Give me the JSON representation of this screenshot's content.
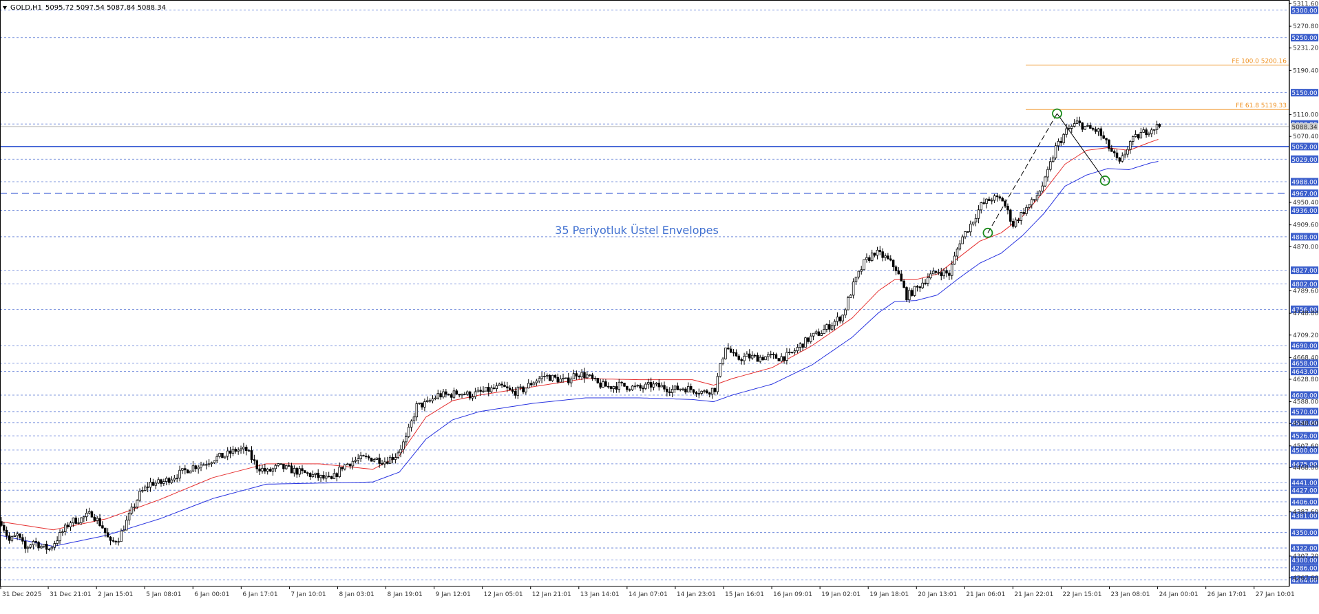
{
  "header": {
    "symbol": "GOLD,H1",
    "ohlc": "5095.72 5097.54 5087.84 5088.34"
  },
  "annotation": "35 Periyotluk Üstel Envelopes",
  "colors": {
    "background": "#ffffff",
    "level_line": "#3a5fcd",
    "level_label_bg": "#3c5fcc",
    "major_level": "#2a4fd0",
    "upper_envelope": "#e53030",
    "lower_envelope": "#2a35e0",
    "candle": "#000000",
    "fibo": "#ef8f1c",
    "circle": "#1a8a1a",
    "current_price_line": "#a0a0a0"
  },
  "fibo_levels": [
    {
      "label": "FE 100.0 5200.16",
      "price": 5200.16
    },
    {
      "label": "FE 61.8 5119.33",
      "price": 5119.33
    }
  ],
  "current_price": "5088.34",
  "chart_data": {
    "type": "candlestick",
    "title": "",
    "instrument": "GOLD",
    "timeframe": "H1",
    "ylim": [
      4252,
      5316
    ],
    "y_ticks": [
      "5311.60",
      "5270.80",
      "5231.20",
      "5190.40",
      "5110.00",
      "5070.40",
      "4950.40",
      "4909.60",
      "4870.00",
      "4789.60",
      "4748.80",
      "4709.20",
      "4668.40",
      "4628.80",
      "4588.00",
      "4548.40",
      "4507.60",
      "4468.00",
      "4387.60",
      "4307.20",
      "4267.60"
    ],
    "x_labels": [
      "31 Dec 2025",
      "31 Dec 21:01",
      "2 Jan 15:01",
      "5 Jan 08:01",
      "6 Jan 00:01",
      "6 Jan 17:01",
      "7 Jan 10:01",
      "8 Jan 03:01",
      "8 Jan 19:01",
      "9 Jan 12:01",
      "12 Jan 05:01",
      "12 Jan 21:01",
      "13 Jan 14:01",
      "14 Jan 07:01",
      "14 Jan 23:01",
      "15 Jan 16:01",
      "16 Jan 09:01",
      "19 Jan 02:01",
      "19 Jan 18:01",
      "20 Jan 13:01",
      "21 Jan 06:01",
      "21 Jan 22:01",
      "22 Jan 15:01",
      "23 Jan 08:01",
      "24 Jan 00:01",
      "26 Jan 17:01",
      "27 Jan 10:01"
    ],
    "levels": [
      "5300.00",
      "5250.00",
      "5150.00",
      "5093.00",
      "5052.00",
      "5029.00",
      "4988.00",
      "4967.00",
      "4936.00",
      "4888.00",
      "4827.00",
      "4802.00",
      "4756.00",
      "4690.00",
      "4658.00",
      "4643.00",
      "4600.00",
      "4570.00",
      "4550.00",
      "4526.00",
      "4500.00",
      "4475.00",
      "4441.00",
      "4427.00",
      "4406.00",
      "4381.00",
      "4350.00",
      "4322.00",
      "4300.00",
      "4286.00",
      "4264.00"
    ],
    "major_levels": [
      "5052.00",
      "4967.00"
    ],
    "price_path": [
      [
        0,
        4370
      ],
      [
        3,
        4335
      ],
      [
        6,
        4345
      ],
      [
        9,
        4320
      ],
      [
        12,
        4335
      ],
      [
        15,
        4325
      ],
      [
        18,
        4320
      ],
      [
        22,
        4345
      ],
      [
        26,
        4370
      ],
      [
        30,
        4375
      ],
      [
        34,
        4385
      ],
      [
        38,
        4360
      ],
      [
        41,
        4330
      ],
      [
        44,
        4340
      ],
      [
        48,
        4380
      ],
      [
        52,
        4420
      ],
      [
        56,
        4440
      ],
      [
        60,
        4440
      ],
      [
        64,
        4450
      ],
      [
        68,
        4460
      ],
      [
        72,
        4470
      ],
      [
        76,
        4475
      ],
      [
        80,
        4485
      ],
      [
        84,
        4490
      ],
      [
        88,
        4500
      ],
      [
        92,
        4500
      ],
      [
        96,
        4470
      ],
      [
        100,
        4460
      ],
      [
        104,
        4470
      ],
      [
        108,
        4465
      ],
      [
        112,
        4460
      ],
      [
        116,
        4455
      ],
      [
        120,
        4450
      ],
      [
        124,
        4445
      ],
      [
        128,
        4470
      ],
      [
        132,
        4480
      ],
      [
        136,
        4485
      ],
      [
        140,
        4485
      ],
      [
        144,
        4480
      ],
      [
        148,
        4490
      ],
      [
        152,
        4520
      ],
      [
        156,
        4580
      ],
      [
        160,
        4585
      ],
      [
        164,
        4600
      ],
      [
        168,
        4600
      ],
      [
        172,
        4605
      ],
      [
        176,
        4600
      ],
      [
        180,
        4605
      ],
      [
        184,
        4610
      ],
      [
        188,
        4615
      ],
      [
        192,
        4605
      ],
      [
        196,
        4610
      ],
      [
        200,
        4625
      ],
      [
        204,
        4635
      ],
      [
        208,
        4630
      ],
      [
        212,
        4625
      ],
      [
        216,
        4640
      ],
      [
        220,
        4635
      ],
      [
        224,
        4620
      ],
      [
        228,
        4615
      ],
      [
        232,
        4618
      ],
      [
        236,
        4615
      ],
      [
        240,
        4612
      ],
      [
        244,
        4618
      ],
      [
        248,
        4615
      ],
      [
        252,
        4610
      ],
      [
        256,
        4613
      ],
      [
        260,
        4610
      ],
      [
        264,
        4605
      ],
      [
        268,
        4612
      ],
      [
        272,
        4690
      ],
      [
        276,
        4665
      ],
      [
        280,
        4670
      ],
      [
        284,
        4668
      ],
      [
        288,
        4670
      ],
      [
        292,
        4668
      ],
      [
        296,
        4672
      ],
      [
        300,
        4690
      ],
      [
        304,
        4705
      ],
      [
        308,
        4715
      ],
      [
        312,
        4730
      ],
      [
        316,
        4745
      ],
      [
        320,
        4800
      ],
      [
        324,
        4840
      ],
      [
        328,
        4860
      ],
      [
        332,
        4850
      ],
      [
        336,
        4830
      ],
      [
        340,
        4780
      ],
      [
        344,
        4795
      ],
      [
        348,
        4815
      ],
      [
        352,
        4825
      ],
      [
        356,
        4820
      ],
      [
        360,
        4880
      ],
      [
        364,
        4910
      ],
      [
        368,
        4945
      ],
      [
        372,
        4958
      ],
      [
        376,
        4955
      ],
      [
        380,
        4910
      ],
      [
        384,
        4935
      ],
      [
        388,
        4955
      ],
      [
        392,
        4990
      ],
      [
        396,
        5050
      ],
      [
        400,
        5080
      ],
      [
        404,
        5095
      ],
      [
        408,
        5085
      ],
      [
        412,
        5080
      ],
      [
        416,
        5050
      ],
      [
        420,
        5020
      ],
      [
        424,
        5060
      ],
      [
        428,
        5075
      ],
      [
        432,
        5085
      ],
      [
        435,
        5090
      ]
    ],
    "upper_envelope_path": [
      [
        0,
        4370
      ],
      [
        20,
        4355
      ],
      [
        40,
        4375
      ],
      [
        60,
        4410
      ],
      [
        80,
        4450
      ],
      [
        100,
        4475
      ],
      [
        120,
        4475
      ],
      [
        140,
        4465
      ],
      [
        150,
        4490
      ],
      [
        160,
        4560
      ],
      [
        170,
        4590
      ],
      [
        180,
        4600
      ],
      [
        200,
        4615
      ],
      [
        220,
        4630
      ],
      [
        240,
        4628
      ],
      [
        260,
        4628
      ],
      [
        268,
        4618
      ],
      [
        275,
        4630
      ],
      [
        290,
        4650
      ],
      [
        305,
        4690
      ],
      [
        320,
        4740
      ],
      [
        330,
        4790
      ],
      [
        336,
        4810
      ],
      [
        344,
        4810
      ],
      [
        352,
        4820
      ],
      [
        360,
        4850
      ],
      [
        368,
        4880
      ],
      [
        376,
        4895
      ],
      [
        384,
        4925
      ],
      [
        392,
        4970
      ],
      [
        400,
        5020
      ],
      [
        408,
        5045
      ],
      [
        416,
        5050
      ],
      [
        424,
        5045
      ],
      [
        432,
        5060
      ],
      [
        435,
        5065
      ]
    ],
    "lower_envelope_path": [
      [
        0,
        4345
      ],
      [
        20,
        4325
      ],
      [
        40,
        4345
      ],
      [
        60,
        4375
      ],
      [
        80,
        4412
      ],
      [
        100,
        4438
      ],
      [
        120,
        4440
      ],
      [
        140,
        4442
      ],
      [
        150,
        4460
      ],
      [
        160,
        4520
      ],
      [
        170,
        4555
      ],
      [
        180,
        4570
      ],
      [
        200,
        4585
      ],
      [
        220,
        4595
      ],
      [
        240,
        4595
      ],
      [
        260,
        4592
      ],
      [
        268,
        4588
      ],
      [
        275,
        4600
      ],
      [
        290,
        4620
      ],
      [
        305,
        4655
      ],
      [
        320,
        4705
      ],
      [
        330,
        4750
      ],
      [
        336,
        4770
      ],
      [
        344,
        4772
      ],
      [
        352,
        4782
      ],
      [
        360,
        4812
      ],
      [
        368,
        4840
      ],
      [
        376,
        4858
      ],
      [
        384,
        4890
      ],
      [
        392,
        4930
      ],
      [
        400,
        4980
      ],
      [
        408,
        5000
      ],
      [
        416,
        5012
      ],
      [
        424,
        5010
      ],
      [
        432,
        5022
      ],
      [
        435,
        5025
      ]
    ],
    "circles": [
      [
        371,
        4895
      ],
      [
        397,
        5112
      ],
      [
        415,
        4990
      ]
    ]
  }
}
